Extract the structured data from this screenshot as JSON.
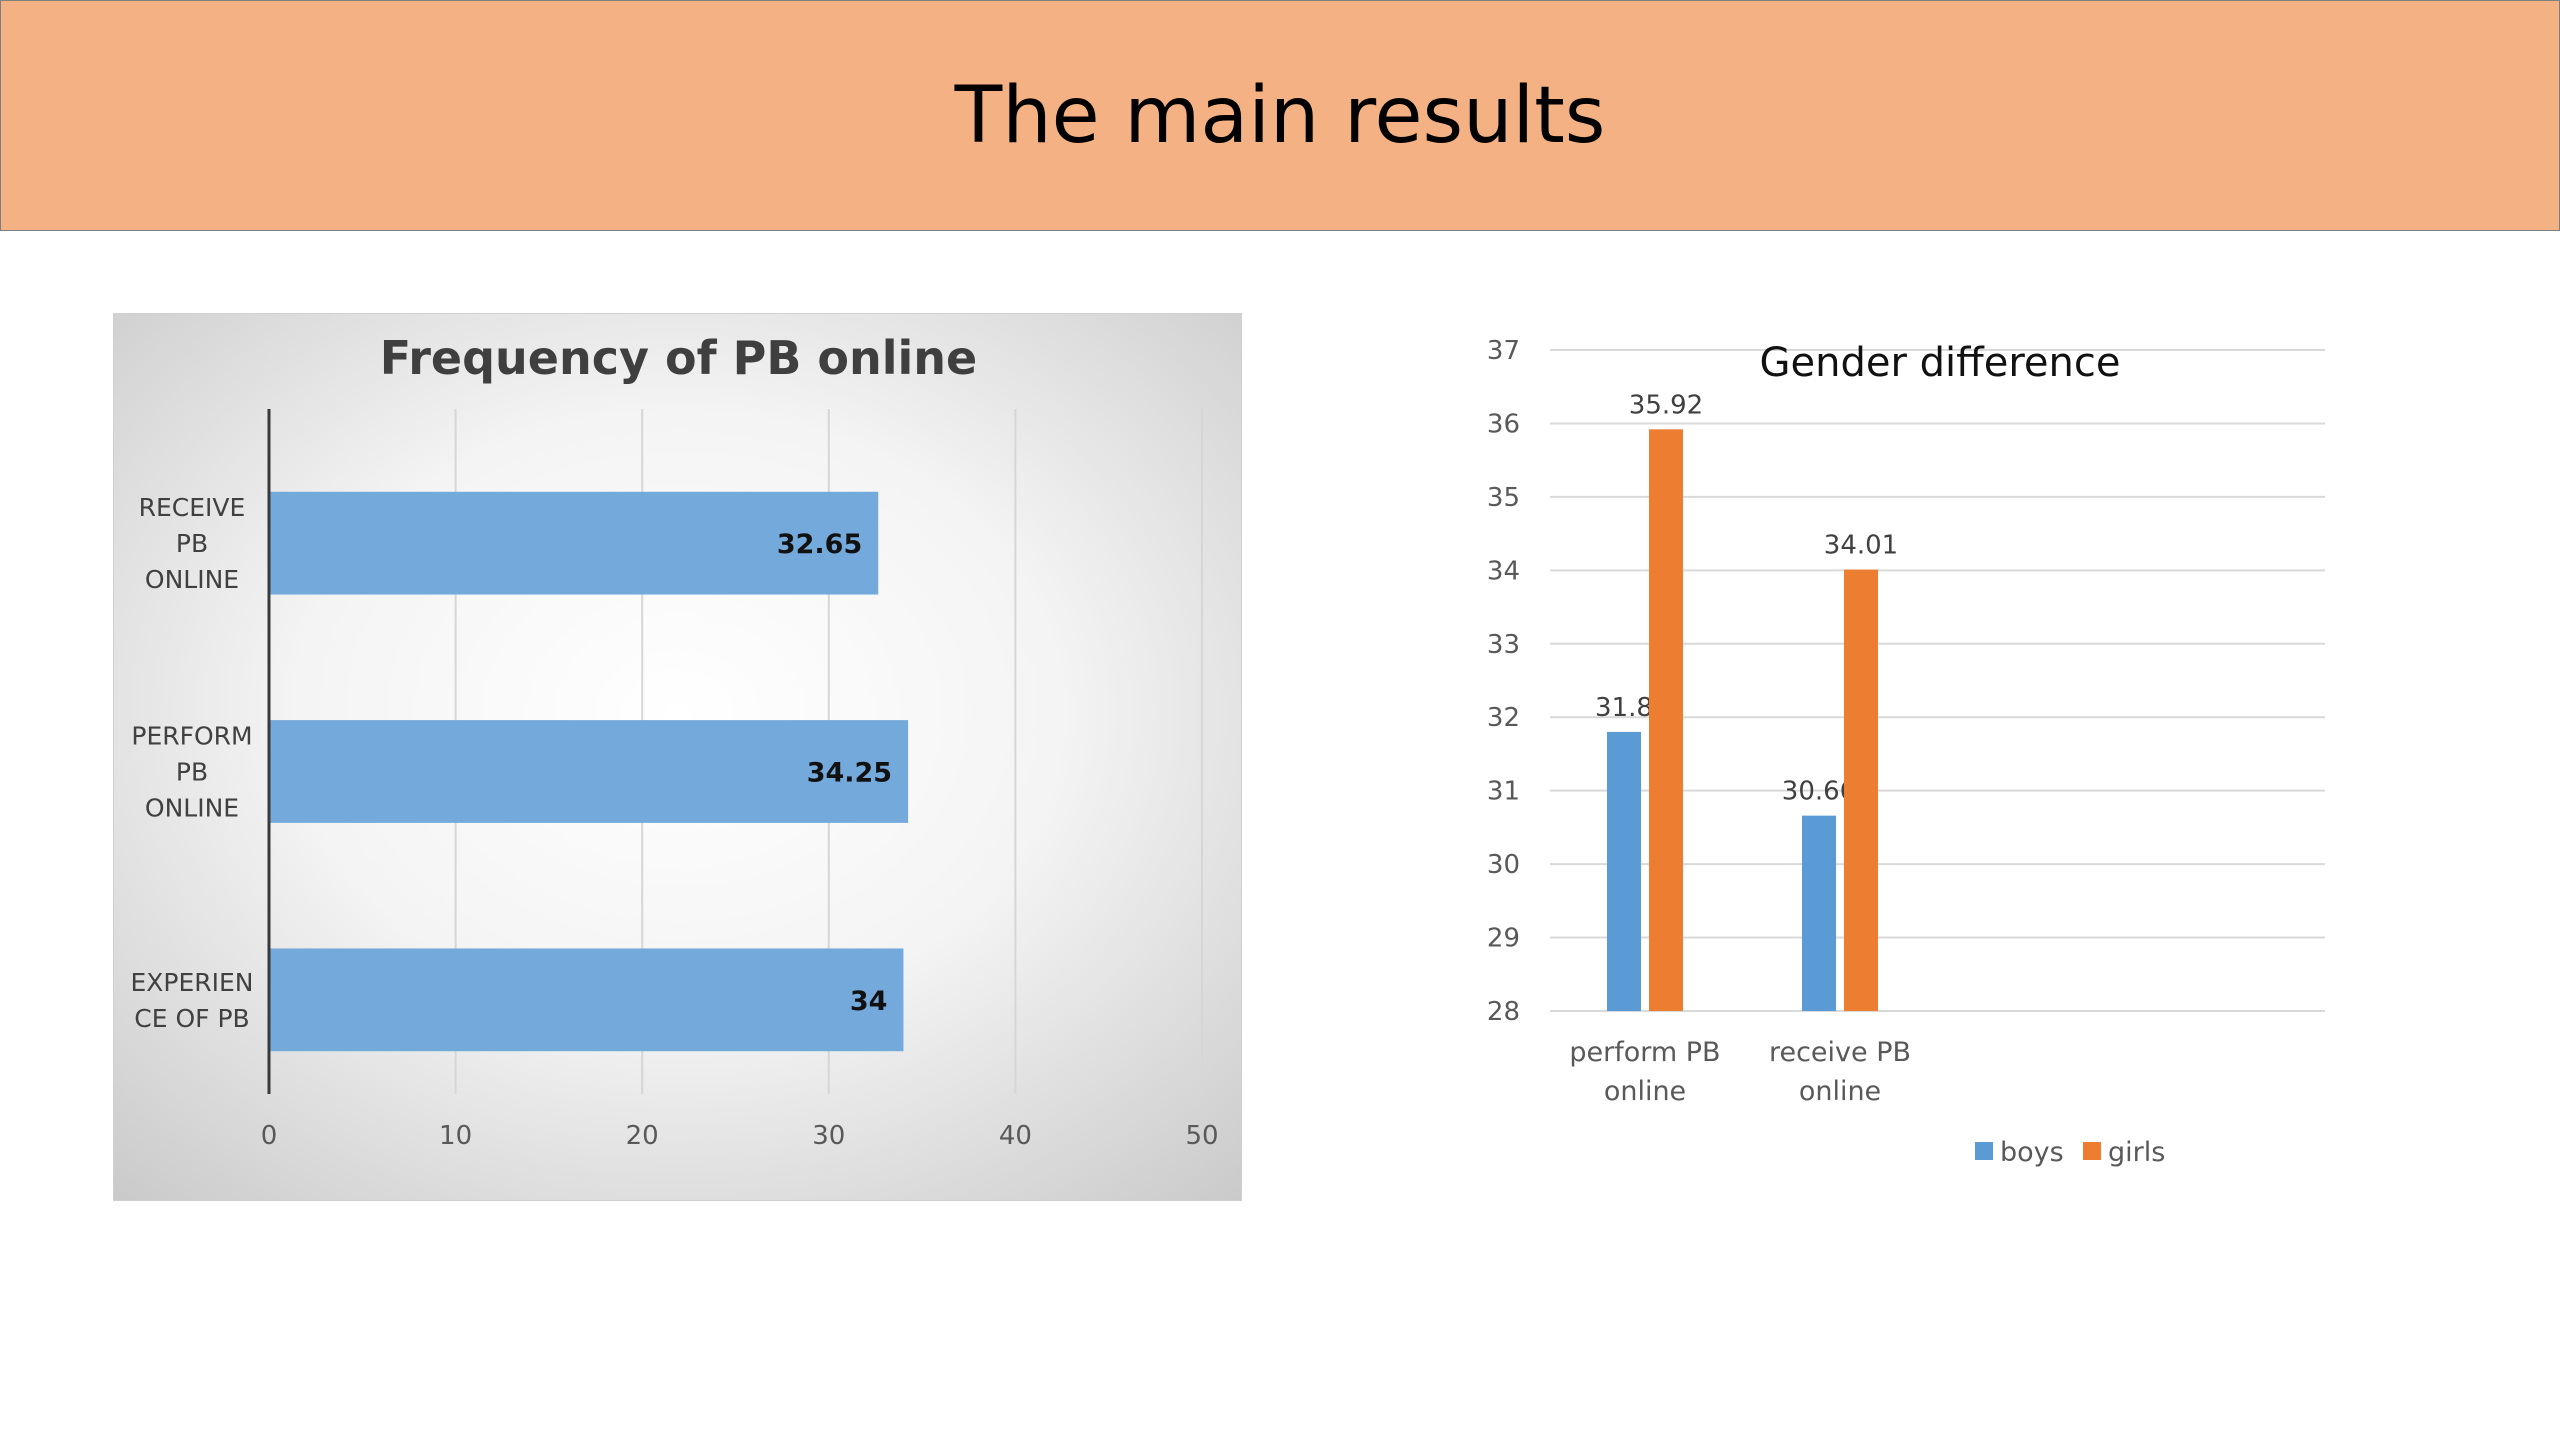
{
  "slide": {
    "title": "The main results",
    "header_color": "#f4b183",
    "background": "#ffffff"
  },
  "chart_data": [
    {
      "type": "bar",
      "orientation": "horizontal",
      "title": "Frequency of PB online",
      "categories": [
        "RECEIVE PB ONLINE",
        "PERFORM PB ONLINE",
        "EXPERIENCE OF PB"
      ],
      "category_label_lines": [
        [
          "RECEIVE",
          "PB",
          "ONLINE"
        ],
        [
          "PERFORM",
          "PB",
          "ONLINE"
        ],
        [
          "EXPERIEN",
          "CE OF PB"
        ]
      ],
      "values": [
        32.65,
        34.25,
        34
      ],
      "value_labels": [
        "32.65",
        "34.25",
        "34"
      ],
      "xlim": [
        0,
        50
      ],
      "xticks": [
        0,
        10,
        20,
        30,
        40,
        50
      ],
      "bar_color": "#74a9db",
      "grid": true,
      "legend": "none",
      "background": "radial gradient white to grey"
    },
    {
      "type": "bar",
      "orientation": "vertical",
      "title": "Gender difference",
      "categories": [
        "perform PB online",
        "receive PB online"
      ],
      "category_label_lines": [
        [
          "perform PB",
          "online"
        ],
        [
          "receive PB",
          "online"
        ]
      ],
      "series": [
        {
          "name": "boys",
          "values": [
            31.8,
            30.66
          ],
          "value_labels": [
            "31.8",
            "30.66"
          ],
          "color": "#5b9bd5"
        },
        {
          "name": "girls",
          "values": [
            35.92,
            34.01
          ],
          "value_labels": [
            "35.92",
            "34.01"
          ],
          "color": "#ed7d31"
        }
      ],
      "ylim": [
        28,
        37
      ],
      "yticks": [
        28,
        29,
        30,
        31,
        32,
        33,
        34,
        35,
        36,
        37
      ],
      "grid": true,
      "legend": "bottom-right"
    }
  ]
}
